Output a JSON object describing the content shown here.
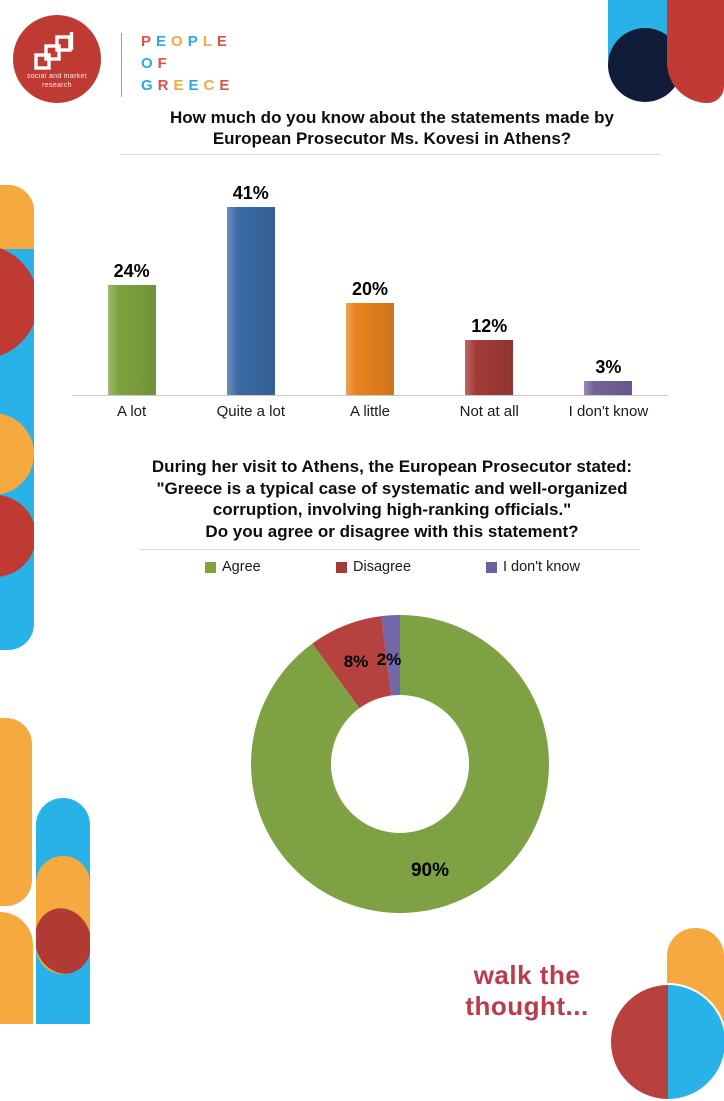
{
  "brand": {
    "logo_line1": "social and market",
    "logo_line2": "research",
    "wordmark": [
      [
        {
          "ch": "P",
          "color": "#d9534a"
        },
        {
          "ch": "E",
          "color": "#29abe2"
        },
        {
          "ch": "O",
          "color": "#f3a73e"
        },
        {
          "ch": "P",
          "color": "#29abe2"
        },
        {
          "ch": "L",
          "color": "#f3a73e"
        },
        {
          "ch": "E",
          "color": "#d9534a"
        }
      ],
      [
        {
          "ch": "O",
          "color": "#29abe2"
        },
        {
          "ch": "F",
          "color": "#d9534a"
        }
      ],
      [
        {
          "ch": "G",
          "color": "#29abe2"
        },
        {
          "ch": "R",
          "color": "#d9534a"
        },
        {
          "ch": "E",
          "color": "#f3a73e"
        },
        {
          "ch": "E",
          "color": "#29abe2"
        },
        {
          "ch": "C",
          "color": "#f3a73e"
        },
        {
          "ch": "E",
          "color": "#d9534a"
        }
      ]
    ]
  },
  "palette": {
    "orange": "#f6a93f",
    "red": "#c13a36",
    "blue": "#29b2e8",
    "navy": "#111c38",
    "crimson": "#bc3a4e"
  },
  "chart_data": [
    {
      "type": "bar",
      "title_lines": [
        "How much do you know about the statements made by",
        "European Prosecutor Ms. Kovesi in Athens?"
      ],
      "categories": [
        "A lot",
        "Quite a lot",
        "A little",
        "Not at all",
        "I don't know"
      ],
      "values": [
        24,
        41,
        20,
        12,
        3
      ],
      "labels": [
        "24%",
        "41%",
        "20%",
        "12%",
        "3%"
      ],
      "colors": [
        "#7da33f",
        "#3a6ba4",
        "#e8821d",
        "#a33b38",
        "#75619b"
      ],
      "unit": "%",
      "ylim": [
        0,
        45
      ],
      "grid": false,
      "legend_position": "none"
    },
    {
      "type": "donut",
      "title_lines": [
        "During her visit to Athens, the European Prosecutor stated:",
        "\"Greece is a typical case of systematic and well-organized",
        "corruption, involving high-ranking officials.\"",
        "Do you agree or disagree with this statement?"
      ],
      "legend_position": "top",
      "legend": [
        {
          "label": "Agree",
          "color": "#7da33f"
        },
        {
          "label": "Disagree",
          "color": "#a23b38"
        },
        {
          "label": "I don't know",
          "color": "#6f5f9c"
        }
      ],
      "slices": [
        {
          "label": "Agree",
          "value": 90,
          "display": "90%",
          "color": "#7ea243"
        },
        {
          "label": "Disagree",
          "value": 8,
          "display": "8%",
          "color": "#b6423f"
        },
        {
          "label": "I don't know",
          "value": 2,
          "display": "2%",
          "color": "#7566aa"
        }
      ]
    }
  ],
  "footer": {
    "tagline": "walk the thought..."
  }
}
